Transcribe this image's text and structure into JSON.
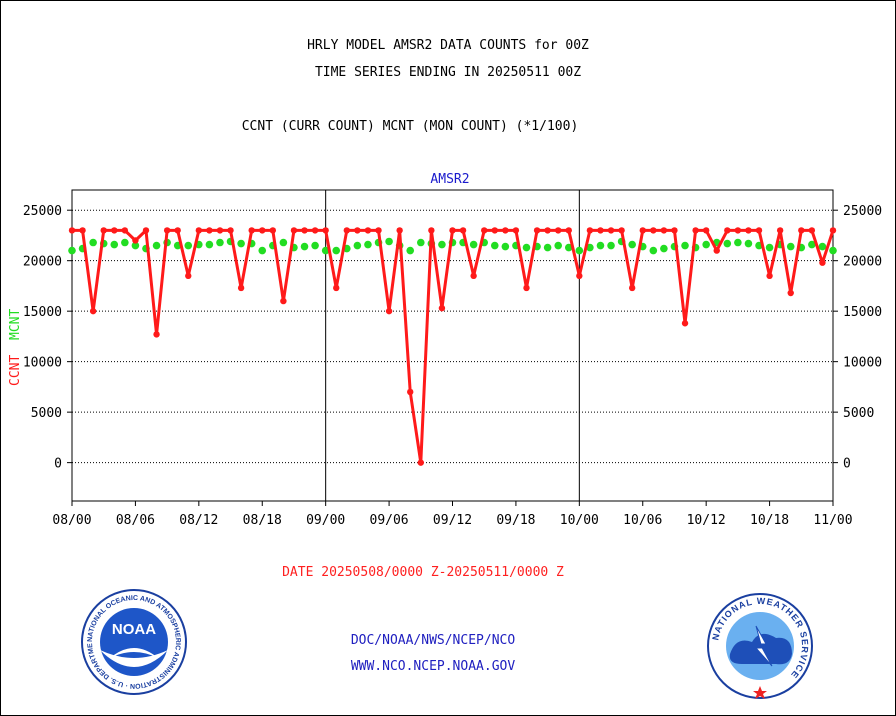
{
  "header": {
    "title_line1": "HRLY MODEL AMSR2 DATA COUNTS for 00Z",
    "title_line2": "TIME SERIES ENDING IN 20250511 00Z",
    "subtitle": "CCNT (CURR COUNT) MCNT (MON COUNT) (*1/100)"
  },
  "footer": {
    "date_range": "DATE 20250508/0000 Z-20250511/0000 Z",
    "org_path": "DOC/NOAA/NWS/NCEP/NCO",
    "website": "WWW.NCO.NCEP.NOAA.GOV",
    "noaa_logo_text": "NOAA",
    "noaa_ring_text": "NATIONAL OCEANIC AND ATMOSPHERIC ADMINISTRATION · U.S. DEPARTMENT OF COMMERCE",
    "nws_ring_text": "NATIONAL WEATHER SERVICE"
  },
  "colors": {
    "ccnt": "#ff1a1a",
    "mcnt": "#22dd22",
    "axis_label": "#1a1acc"
  },
  "chart_data": {
    "type": "line",
    "title": "AMSR2",
    "ylabel_ccnt": "CCNT",
    "ylabel_mcnt": "MCNT",
    "ylim": [
      -3800,
      27000
    ],
    "yticks": [
      0,
      5000,
      10000,
      15000,
      20000,
      25000
    ],
    "xlim": [
      0,
      72
    ],
    "xtick_labels": [
      "08/00",
      "08/06",
      "08/12",
      "08/18",
      "09/00",
      "09/06",
      "09/12",
      "09/18",
      "10/00",
      "10/06",
      "10/12",
      "10/18",
      "11/00"
    ],
    "day_dividers": [
      24,
      48
    ],
    "grid": true,
    "series": [
      {
        "name": "CCNT",
        "values": [
          23000,
          23000,
          15000,
          23000,
          23000,
          23000,
          22000,
          23000,
          12700,
          23000,
          23000,
          18500,
          23000,
          23000,
          23000,
          23000,
          17300,
          23000,
          23000,
          23000,
          16000,
          23000,
          23000,
          23000,
          23000,
          17300,
          23000,
          23000,
          23000,
          23000,
          15000,
          23000,
          7000,
          0,
          23000,
          15300,
          23000,
          23000,
          18500,
          23000,
          23000,
          23000,
          23000,
          17300,
          23000,
          23000,
          23000,
          23000,
          18500,
          23000,
          23000,
          23000,
          23000,
          17300,
          23000,
          23000,
          23000,
          23000,
          13800,
          23000,
          23000,
          21000,
          23000,
          23000,
          23000,
          23000,
          18500,
          23000,
          16800,
          23000,
          23000,
          19800,
          23000
        ]
      },
      {
        "name": "MCNT",
        "values": [
          21000,
          21200,
          21800,
          21700,
          21600,
          21800,
          21500,
          21200,
          21500,
          21800,
          21500,
          21500,
          21600,
          21600,
          21800,
          21900,
          21700,
          21700,
          21000,
          21500,
          21800,
          21300,
          21400,
          21500,
          21000,
          21000,
          21200,
          21500,
          21600,
          21800,
          21900,
          21500,
          21000,
          21800,
          21700,
          21600,
          21800,
          21800,
          21600,
          21800,
          21500,
          21400,
          21500,
          21300,
          21400,
          21300,
          21500,
          21300,
          21000,
          21300,
          21500,
          21500,
          21900,
          21600,
          21400,
          21000,
          21200,
          21400,
          21500,
          21300,
          21600,
          21800,
          21700,
          21800,
          21700,
          21500,
          21300,
          21600,
          21400,
          21300,
          21600,
          21400,
          21000
        ]
      }
    ]
  }
}
